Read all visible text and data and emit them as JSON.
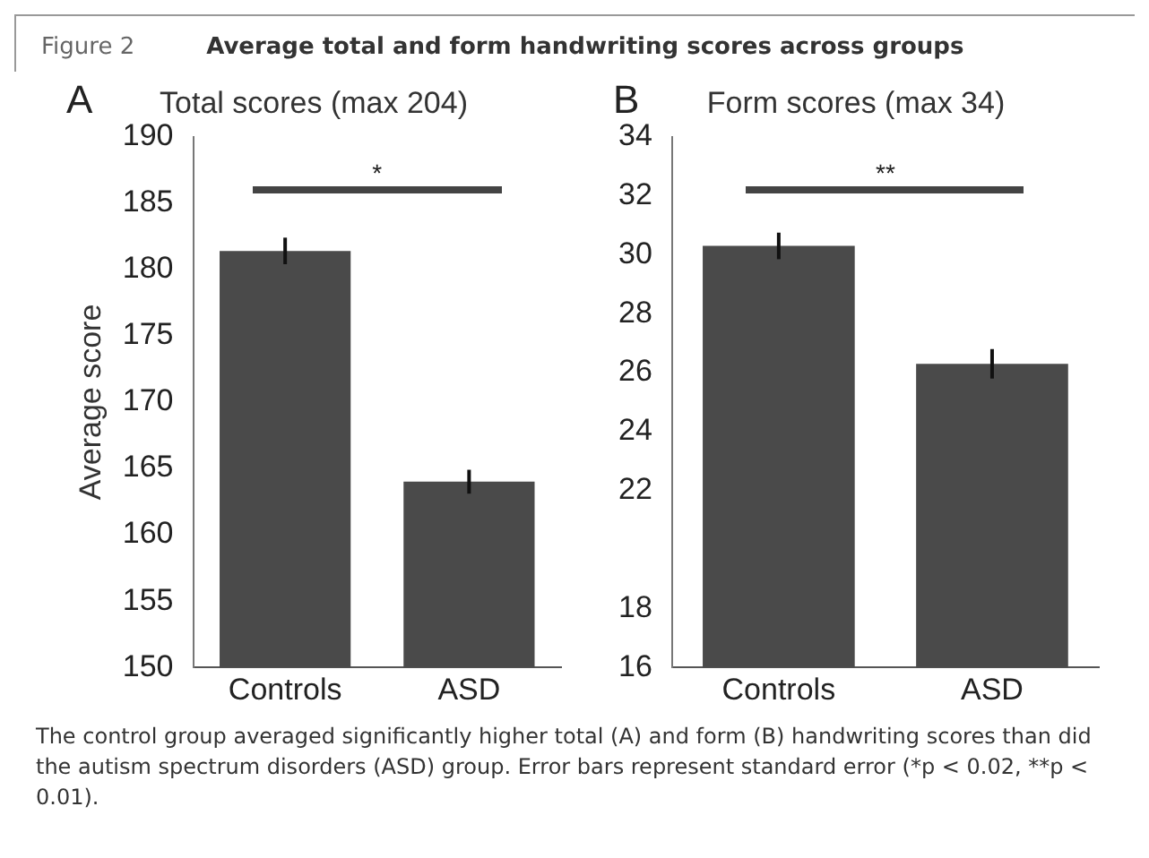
{
  "chart_data": [
    {
      "type": "other",
      "title": "Average total and form handwriting scores across groups",
      "annotations": [
        "Figure 2"
      ]
    },
    {
      "type": "bar",
      "title": "Total scores (max 204)",
      "ylabel": "Average score",
      "categories": [
        "Controls",
        "ASD"
      ],
      "values": [
        181.4,
        164.0
      ],
      "errors": [
        1.0,
        0.9
      ],
      "color": "#4a4a4a",
      "ylim": [
        150,
        190
      ],
      "yticks": [
        150,
        155,
        160,
        165,
        170,
        175,
        180,
        185,
        190
      ],
      "grid": false,
      "legend": false,
      "annotations": [
        "A",
        "*"
      ]
    },
    {
      "type": "bar",
      "title": "Form scores (max 34)",
      "categories": [
        "Controls",
        "ASD"
      ],
      "values": [
        30.3,
        26.3
      ],
      "errors": [
        0.45,
        0.5
      ],
      "color": "#4a4a4a",
      "ylim": [
        16,
        34
      ],
      "yticks": [
        16,
        18,
        22,
        24,
        26,
        28,
        30,
        32,
        34
      ],
      "grid": false,
      "legend": false,
      "annotations": [
        "B",
        "**"
      ]
    },
    {
      "type": "other",
      "annotations": [
        "The control group averaged significantly higher total (A) and form (B) handwriting scores than did the autism spectrum disorders (ASD) group. Error bars represent standard error (*p < 0.02, **p < 0.01)."
      ]
    }
  ]
}
